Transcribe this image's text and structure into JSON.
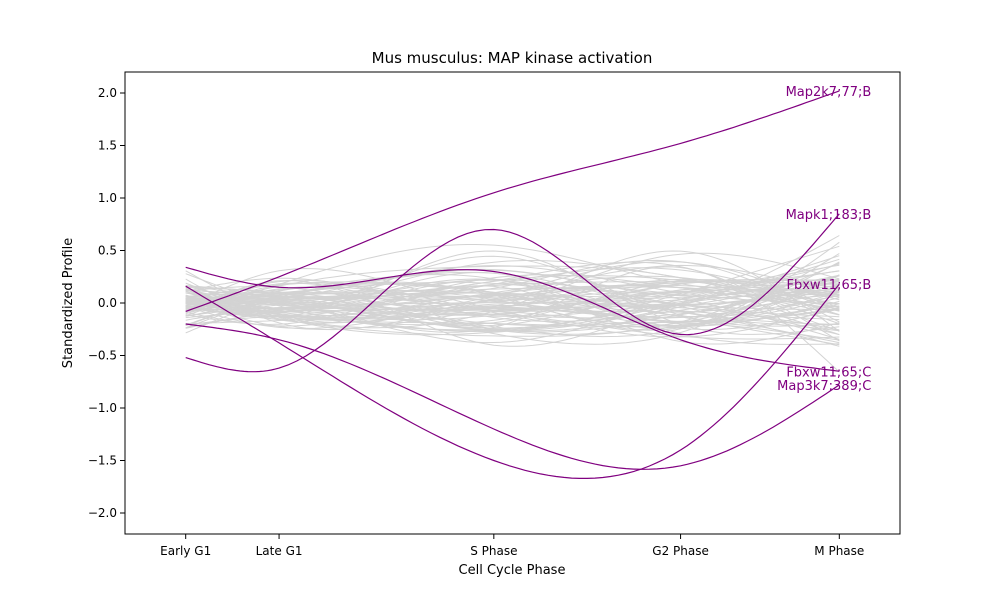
{
  "chart_data": {
    "type": "line",
    "title": "Mus musculus: MAP kinase activation",
    "xlabel": "Cell Cycle Phase",
    "ylabel": "Standardized Profile",
    "categories": [
      "Early G1",
      "Late G1",
      "S Phase",
      "G2 Phase",
      "M Phase"
    ],
    "x": [
      0,
      1,
      3.3,
      5.3,
      7
    ],
    "xlim": [
      -0.65,
      7.65
    ],
    "ylim": [
      -2.2,
      2.2
    ],
    "yticks": [
      -2.0,
      -1.5,
      -1.0,
      -0.5,
      0.0,
      0.5,
      1.0,
      1.5,
      2.0
    ],
    "ytick_labels": [
      "−2.0",
      "−1.5",
      "−1.0",
      "−0.5",
      "0.0",
      "0.5",
      "1.0",
      "1.5",
      "2.0"
    ],
    "grid": false,
    "legend": "none",
    "background_color": "#d3d3d3",
    "highlight_color": "#800080",
    "background_series_count": 90,
    "highlighted_series": [
      {
        "name": "Map2k7;77;B",
        "values": [
          -0.08,
          0.25,
          1.05,
          1.52,
          2.02
        ]
      },
      {
        "name": "Mapk1;183;B",
        "values": [
          -0.52,
          -0.62,
          0.7,
          -0.3,
          0.85
        ]
      },
      {
        "name": "Fbxw11;65;B",
        "values": [
          0.16,
          -0.38,
          -1.5,
          -1.4,
          0.18
        ]
      },
      {
        "name": "Fbxw11;65;C",
        "values": [
          0.34,
          0.15,
          0.3,
          -0.35,
          -0.65
        ]
      },
      {
        "name": "Map3k7;389;C",
        "values": [
          -0.2,
          -0.35,
          -1.2,
          -1.55,
          -0.78
        ]
      }
    ]
  }
}
